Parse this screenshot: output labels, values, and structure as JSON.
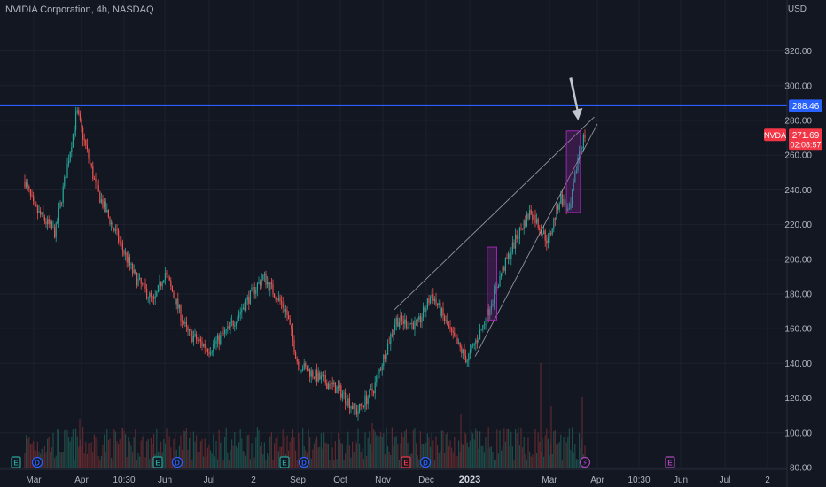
{
  "header": {
    "title": "NVIDIA Corporation, 4h, NASDAQ",
    "currency": "USD"
  },
  "price_labels": {
    "resistance": "288.46",
    "ticker": "NVDA",
    "last_price": "271.69",
    "countdown": "02:08:57"
  },
  "colors": {
    "background": "#131722",
    "grid": "#1e222d",
    "up": "#26a69a",
    "down": "#ef5350",
    "resistance_line": "#2962ff",
    "last_price": "#f23645",
    "highlight_box": "#9c27b0",
    "channel": "#b2b5be",
    "arrow": "#c3c6ce"
  },
  "event_markers": [
    "E",
    "D",
    "E",
    "D",
    "E",
    "D",
    "E",
    "D",
    "⚡",
    "E"
  ],
  "chart_data": {
    "type": "candlestick",
    "title": "NVIDIA Corporation, 4h, NASDAQ",
    "ylabel": "USD",
    "ylim": [
      80,
      330
    ],
    "y_ticks": [
      80,
      100,
      120,
      140,
      160,
      180,
      200,
      220,
      240,
      260,
      280,
      300,
      320
    ],
    "x_tick_labels": [
      "Mar",
      "Apr",
      "10:30",
      "Jun",
      "Jul",
      "2",
      "Sep",
      "Oct",
      "Nov",
      "Dec",
      "2023",
      "Mar",
      "Apr",
      "10:30",
      "Jun",
      "Jul",
      "2"
    ],
    "grid": true,
    "legend": "none",
    "close_path": [
      {
        "date": "2022-02-15",
        "close": 245
      },
      {
        "date": "2022-03-01",
        "close": 230
      },
      {
        "date": "2022-03-15",
        "close": 215
      },
      {
        "date": "2022-03-29",
        "close": 285
      },
      {
        "date": "2022-04-12",
        "close": 240
      },
      {
        "date": "2022-04-26",
        "close": 215
      },
      {
        "date": "2022-05-10",
        "close": 190
      },
      {
        "date": "2022-05-24",
        "close": 175
      },
      {
        "date": "2022-06-01",
        "close": 193
      },
      {
        "date": "2022-06-16",
        "close": 158
      },
      {
        "date": "2022-07-01",
        "close": 148
      },
      {
        "date": "2022-07-15",
        "close": 160
      },
      {
        "date": "2022-08-01",
        "close": 182
      },
      {
        "date": "2022-08-08",
        "close": 190
      },
      {
        "date": "2022-08-24",
        "close": 170
      },
      {
        "date": "2022-09-01",
        "close": 140
      },
      {
        "date": "2022-09-15",
        "close": 132
      },
      {
        "date": "2022-10-01",
        "close": 124
      },
      {
        "date": "2022-10-13",
        "close": 112
      },
      {
        "date": "2022-10-25",
        "close": 125
      },
      {
        "date": "2022-11-10",
        "close": 165
      },
      {
        "date": "2022-11-25",
        "close": 162
      },
      {
        "date": "2022-12-05",
        "close": 180
      },
      {
        "date": "2022-12-20",
        "close": 155
      },
      {
        "date": "2022-12-30",
        "close": 142
      },
      {
        "date": "2023-01-10",
        "close": 160
      },
      {
        "date": "2023-01-25",
        "close": 193
      },
      {
        "date": "2023-02-05",
        "close": 213
      },
      {
        "date": "2023-02-15",
        "close": 228
      },
      {
        "date": "2023-02-28",
        "close": 210
      },
      {
        "date": "2023-03-08",
        "close": 236
      },
      {
        "date": "2023-03-14",
        "close": 226
      },
      {
        "date": "2023-03-20",
        "close": 262
      },
      {
        "date": "2023-03-24",
        "close": 271.69
      }
    ],
    "horizontal_lines": [
      {
        "label": "288.46",
        "value": 288.46
      },
      {
        "label": "271.69",
        "value": 271.69
      }
    ],
    "channel_lines": [
      {
        "from": {
          "date": "2022-11-09",
          "price": 171
        },
        "to": {
          "date": "2023-03-30",
          "price": 282
        }
      },
      {
        "from": {
          "date": "2023-01-05",
          "price": 144
        },
        "to": {
          "date": "2023-04-01",
          "price": 278
        }
      }
    ],
    "highlight_boxes": [
      {
        "from_date": "2023-01-14",
        "to_date": "2023-01-21",
        "low": 165,
        "high": 207
      },
      {
        "from_date": "2023-03-12",
        "to_date": "2023-03-21",
        "low": 227,
        "high": 274
      }
    ],
    "annotation_arrow": {
      "date": "2023-03-19",
      "price": 280
    }
  }
}
